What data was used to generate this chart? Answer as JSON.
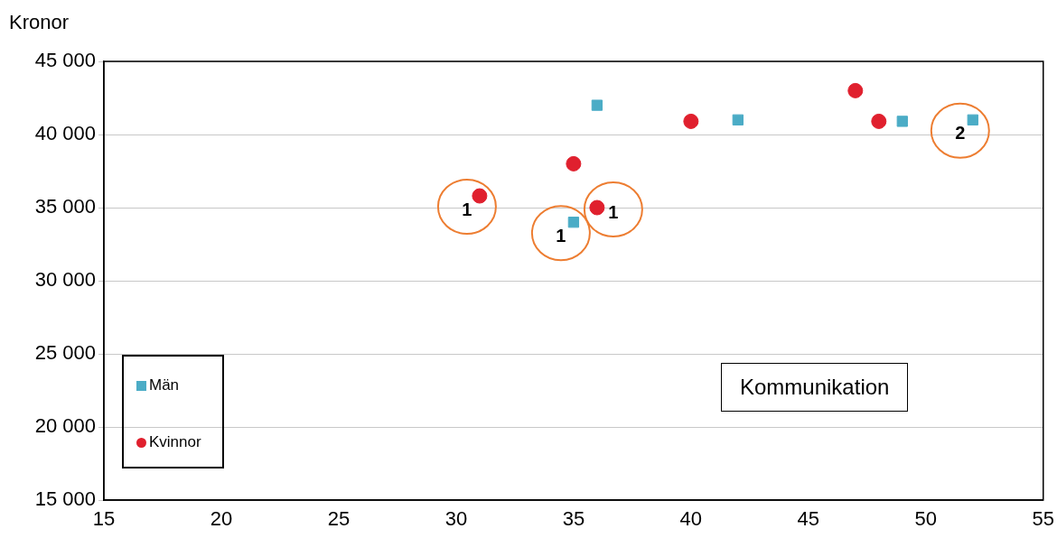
{
  "chart_data": {
    "type": "scatter",
    "ylabel": "Kronor",
    "xlim": [
      15,
      55
    ],
    "xticks": [
      15,
      20,
      25,
      30,
      35,
      40,
      45,
      50,
      55
    ],
    "ylim": [
      15000,
      45000
    ],
    "yticks": [
      {
        "value": 15000,
        "label": "15 000"
      },
      {
        "value": 20000,
        "label": "20 000"
      },
      {
        "value": 25000,
        "label": "25 000"
      },
      {
        "value": 30000,
        "label": "30 000"
      },
      {
        "value": 35000,
        "label": "35 000"
      },
      {
        "value": 40000,
        "label": "40 000"
      },
      {
        "value": 45000,
        "label": "45 000"
      }
    ],
    "grid": "y",
    "legend": "bottom left",
    "series": [
      {
        "name": "Män",
        "color": "#4bacc6",
        "marker": "square",
        "x": [
          36,
          42,
          49,
          52,
          35
        ],
        "values": [
          42000,
          41000,
          40900,
          41000,
          34000
        ]
      },
      {
        "name": "Kvinnor",
        "color": "#e0202e",
        "marker": "circle",
        "x": [
          31,
          35,
          36,
          40,
          47,
          48
        ],
        "values": [
          35800,
          38000,
          35000,
          40900,
          43000,
          40900
        ]
      }
    ],
    "annotations": [
      {
        "text": "1",
        "x": 31,
        "y": 35800
      },
      {
        "text": "1",
        "x": 35,
        "y": 34000
      },
      {
        "text": "1",
        "x": 36,
        "y": 35000
      },
      {
        "text": "2",
        "x": 52,
        "y": 41000
      },
      "Kommunikation"
    ]
  }
}
